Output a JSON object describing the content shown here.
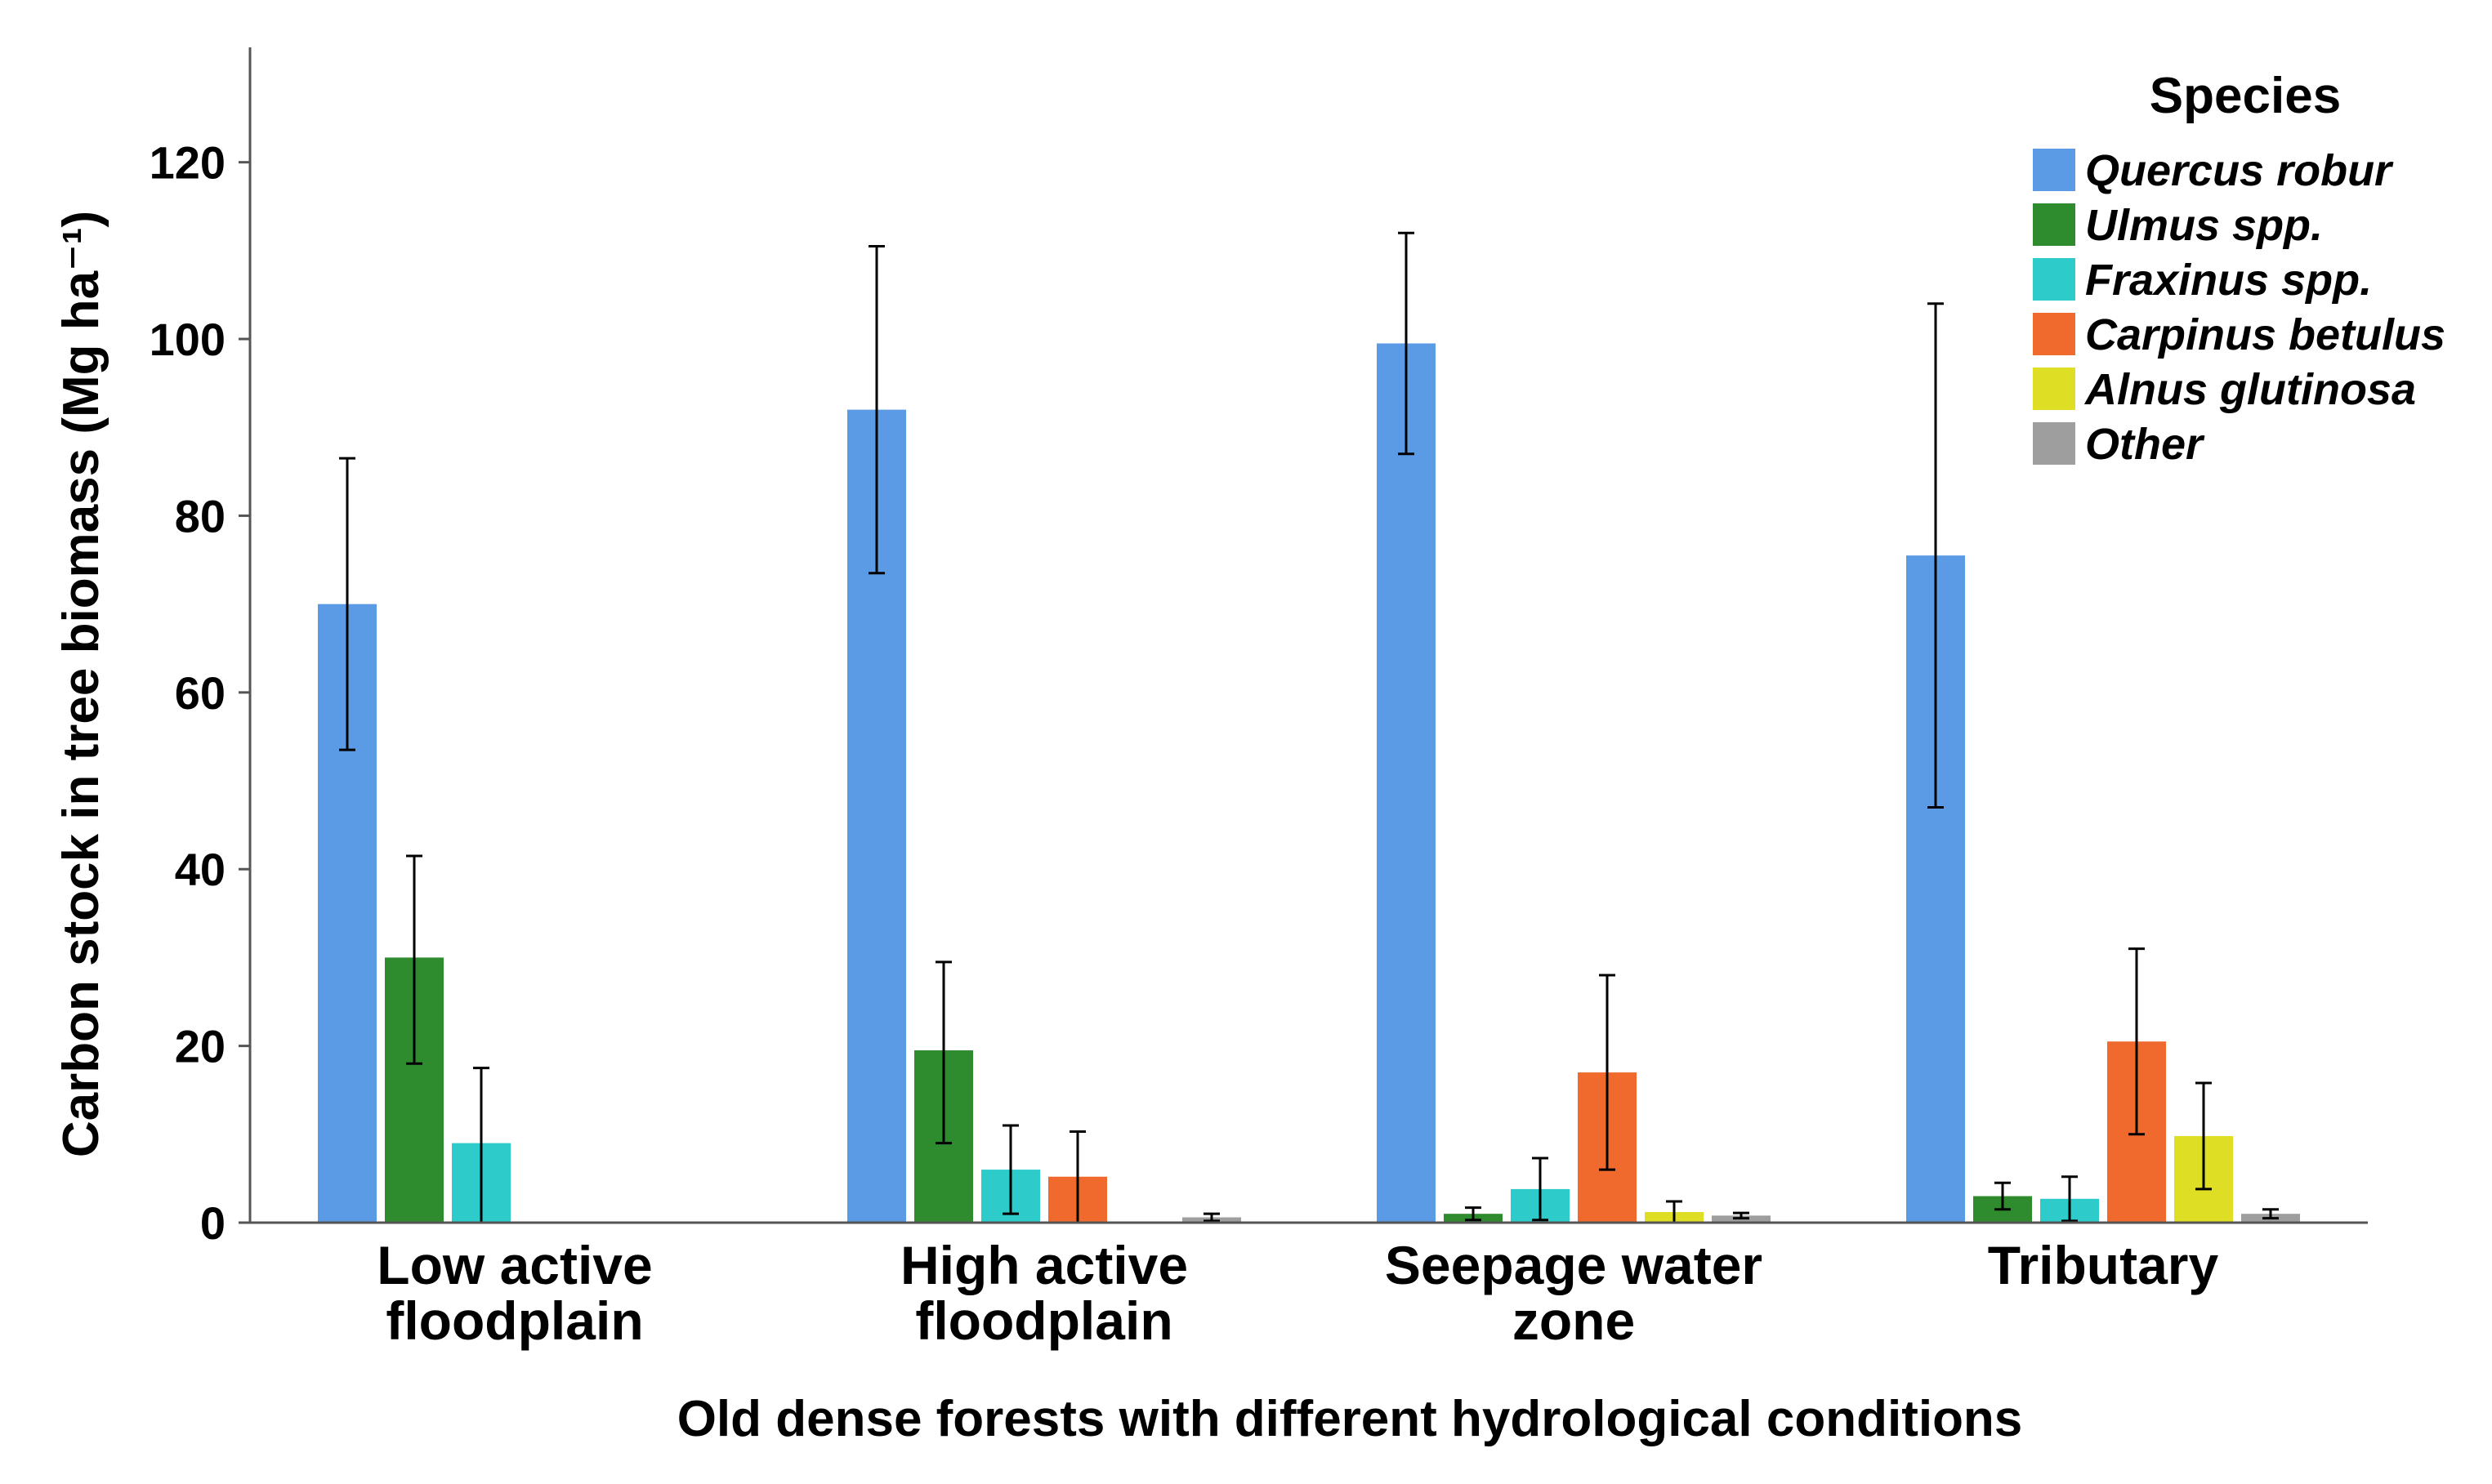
{
  "chart_data": {
    "type": "bar",
    "title": "",
    "xlabel": "Old dense forests with different hydrological conditions",
    "ylabel": "Carbon stock in tree biomass (Mg ha⁻¹)",
    "ylim": [
      0,
      133
    ],
    "yticks": [
      0,
      20,
      40,
      60,
      80,
      100,
      120
    ],
    "categories": [
      [
        "Low active",
        "floodplain"
      ],
      [
        "High active",
        "floodplain"
      ],
      [
        "Seepage water",
        "zone"
      ],
      [
        "Tributary"
      ]
    ],
    "legend": {
      "title": "Species",
      "position": "top-right"
    },
    "series": [
      {
        "name": "Quercus robur",
        "italic": true,
        "color": "#5B9BE6",
        "values": [
          70.0,
          92.0,
          99.5,
          75.5
        ],
        "err_low": [
          53.5,
          73.5,
          87.0,
          47.0
        ],
        "err_high": [
          86.5,
          110.5,
          112.0,
          104.0
        ]
      },
      {
        "name": "Ulmus spp.",
        "italic": true,
        "color": "#2E8B2E",
        "values": [
          30.0,
          19.5,
          1.0,
          3.0
        ],
        "err_low": [
          18.0,
          9.0,
          0.3,
          1.5
        ],
        "err_high": [
          41.5,
          29.5,
          1.7,
          4.5
        ]
      },
      {
        "name": "Fraxinus spp.",
        "italic": true,
        "color": "#2ECBCB",
        "values": [
          9.0,
          6.0,
          3.8,
          2.7
        ],
        "err_low": [
          0.0,
          1.0,
          0.3,
          0.2
        ],
        "err_high": [
          17.5,
          11.0,
          7.3,
          5.2
        ]
      },
      {
        "name": "Carpinus betulus",
        "italic": true,
        "color": "#F06A2E",
        "values": [
          0.0,
          5.2,
          17.0,
          20.5
        ],
        "err_low": [
          0.0,
          0.0,
          6.0,
          10.0
        ],
        "err_high": [
          0.0,
          10.3,
          28.0,
          31.0
        ]
      },
      {
        "name": "Alnus glutinosa",
        "italic": true,
        "color": "#DEDE24",
        "values": [
          0.0,
          0.0,
          1.2,
          9.8
        ],
        "err_low": [
          0.0,
          0.0,
          0.0,
          3.8
        ],
        "err_high": [
          0.0,
          0.0,
          2.4,
          15.8
        ]
      },
      {
        "name": "Other",
        "italic": true,
        "color": "#9E9E9E",
        "values": [
          0.0,
          0.6,
          0.8,
          1.0
        ],
        "err_low": [
          0.0,
          0.2,
          0.5,
          0.5
        ],
        "err_high": [
          0.0,
          1.0,
          1.1,
          1.5
        ]
      }
    ]
  }
}
